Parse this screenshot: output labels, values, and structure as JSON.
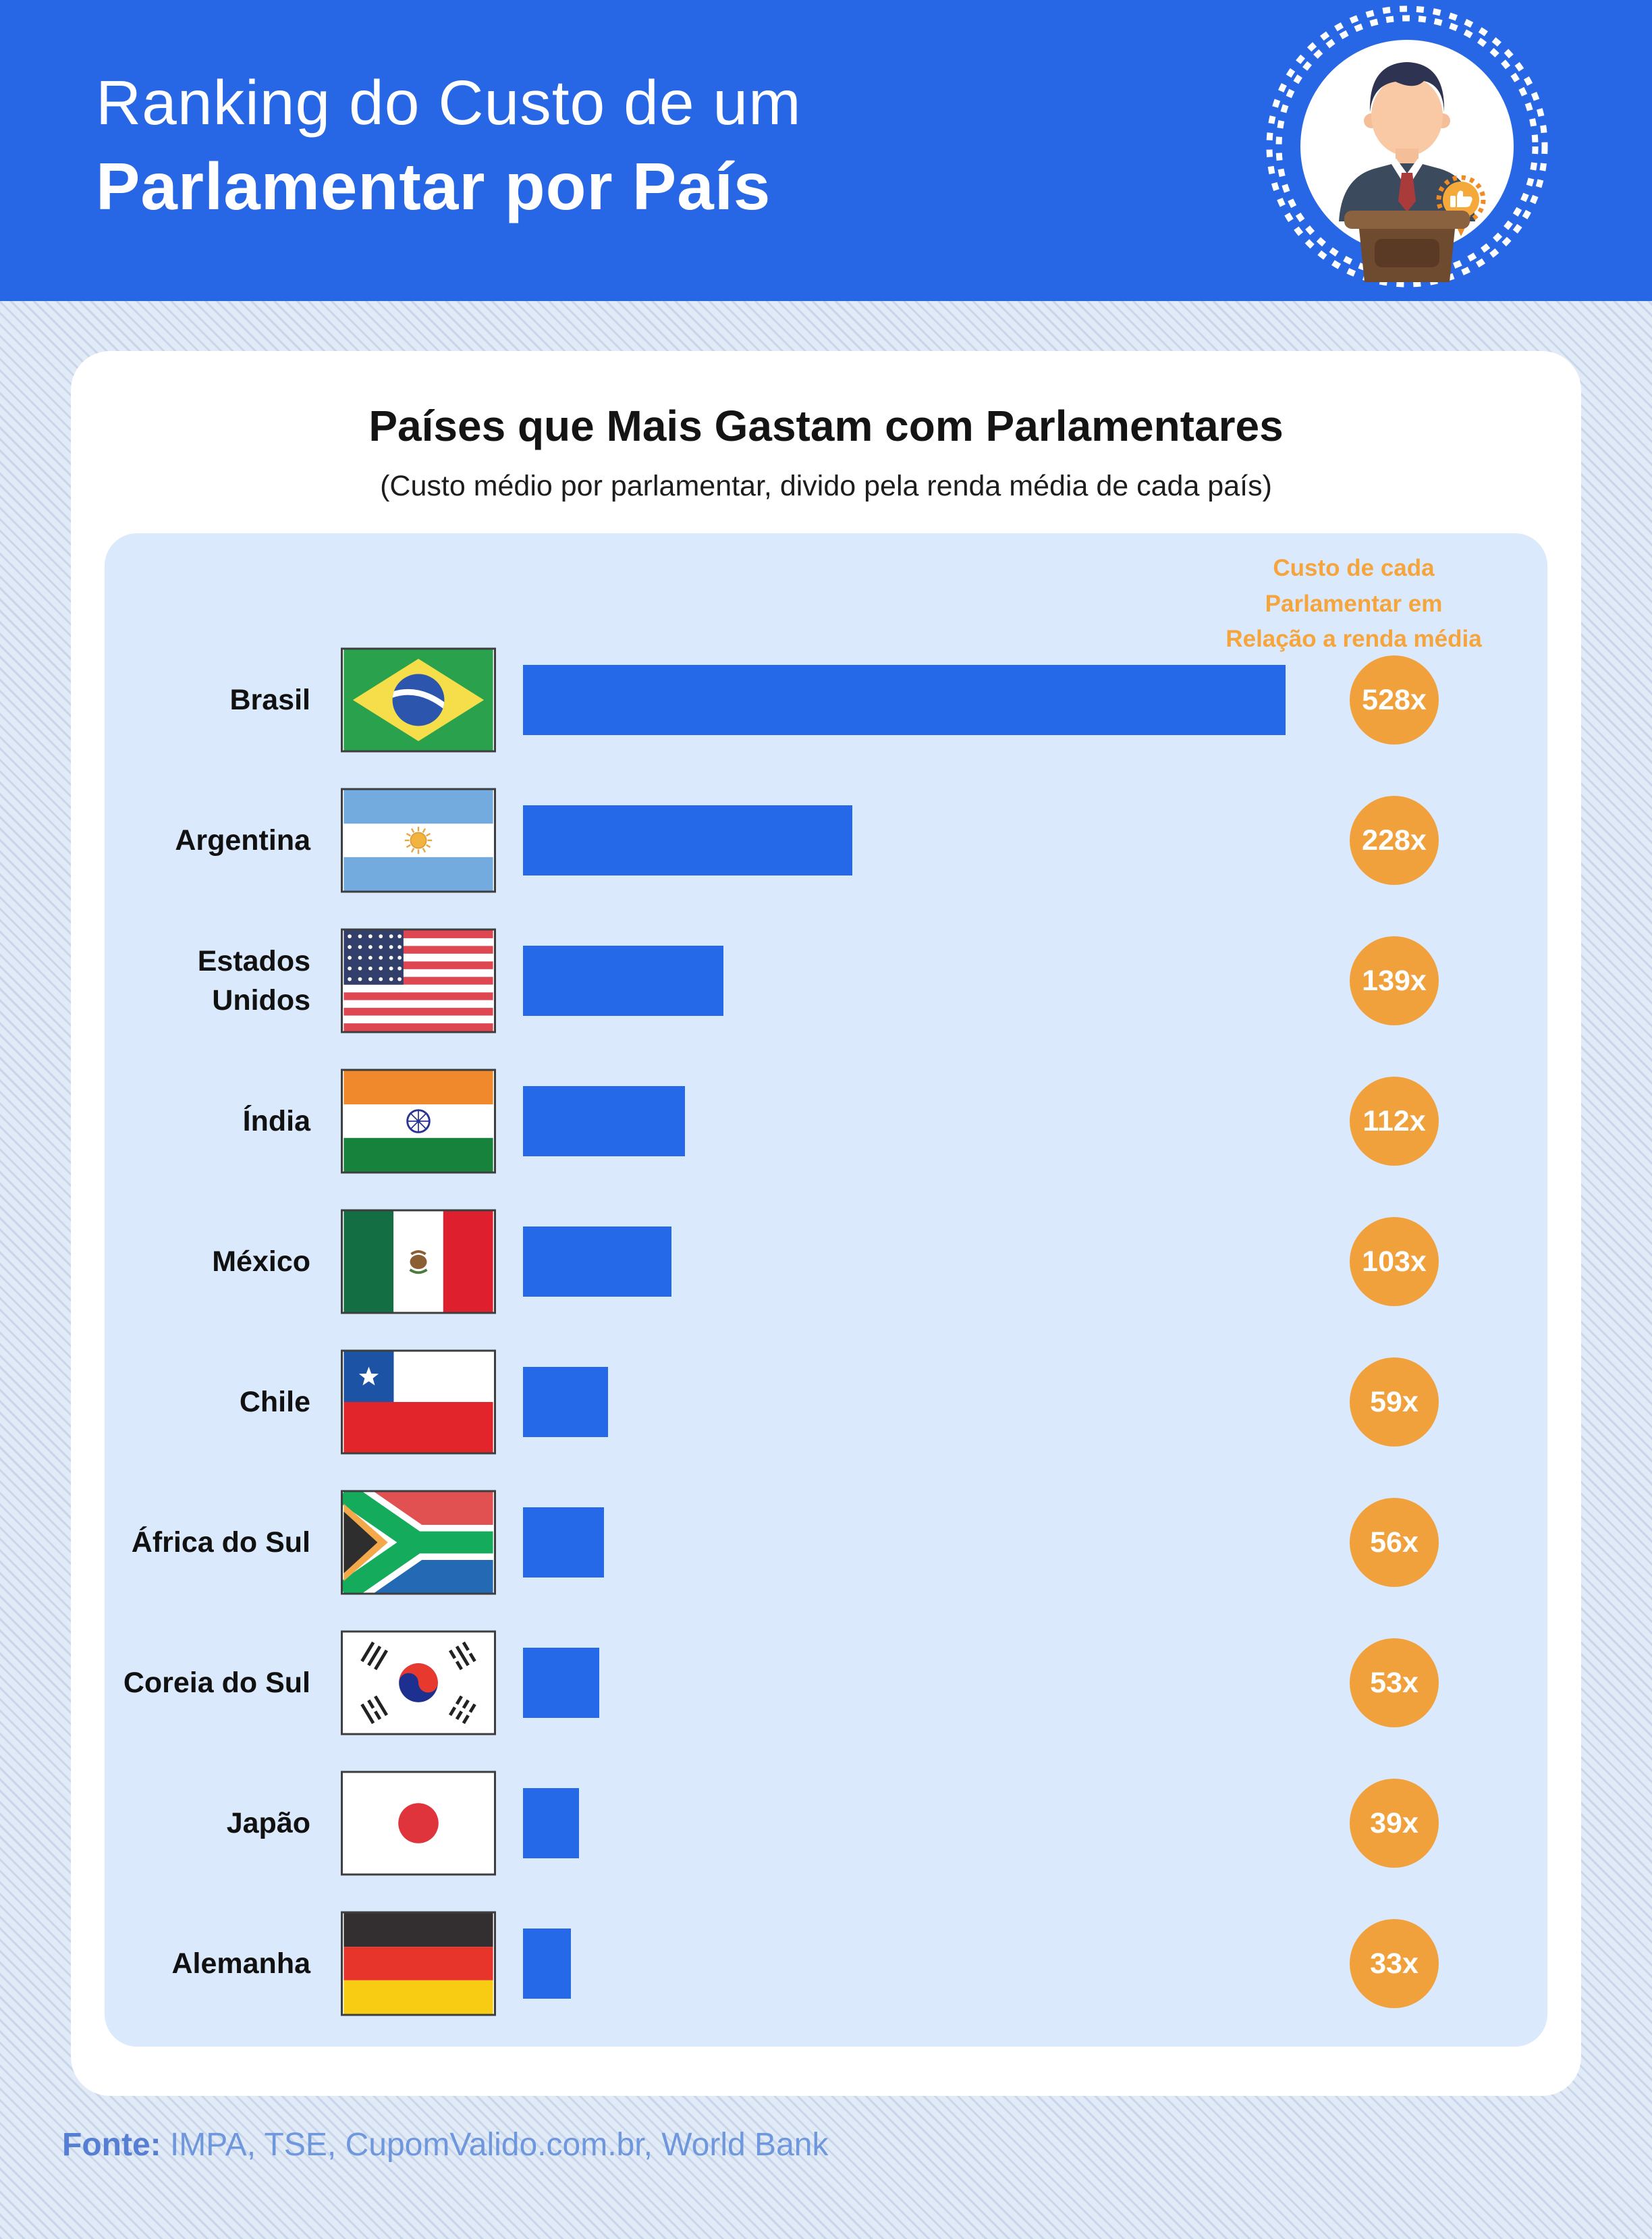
{
  "header": {
    "title_line1": "Ranking do Custo de um",
    "title_line2": "Parlamentar por País"
  },
  "card": {
    "title": "Países que Mais Gastam com Parlamentares",
    "subtitle": "(Custo médio por parlamentar, divido pela renda média de cada país)",
    "note_line1": "Custo de cada",
    "note_line2": "Parlamentar em",
    "note_line3": "Relação a renda média"
  },
  "chart_data": {
    "type": "bar",
    "orientation": "horizontal",
    "title": "Países que Mais Gastam com Parlamentares",
    "subtitle": "(Custo médio por parlamentar, divido pela renda média de cada país)",
    "annotation": "Custo de cada Parlamentar em Relação a renda média",
    "unit_suffix": "x",
    "max_value": 528,
    "grid": false,
    "categories": [
      "Brasil",
      "Argentina",
      "Estados Unidos",
      "Índia",
      "México",
      "Chile",
      "África do Sul",
      "Coreia do Sul",
      "Japão",
      "Alemanha"
    ],
    "values": [
      528,
      228,
      139,
      112,
      103,
      59,
      56,
      53,
      39,
      33
    ],
    "value_labels": [
      "528x",
      "228x",
      "139x",
      "112x",
      "103x",
      "59x",
      "56x",
      "53x",
      "39x",
      "33x"
    ],
    "rows": [
      {
        "country": "Brasil",
        "flag": "brazil-flag-icon",
        "value": 528,
        "value_label": "528x"
      },
      {
        "country": "Argentina",
        "flag": "argentina-flag-icon",
        "value": 228,
        "value_label": "228x"
      },
      {
        "country": "Estados Unidos",
        "flag": "usa-flag-icon",
        "value": 139,
        "value_label": "139x"
      },
      {
        "country": "Índia",
        "flag": "india-flag-icon",
        "value": 112,
        "value_label": "112x"
      },
      {
        "country": "México",
        "flag": "mexico-flag-icon",
        "value": 103,
        "value_label": "103x"
      },
      {
        "country": "Chile",
        "flag": "chile-flag-icon",
        "value": 59,
        "value_label": "59x"
      },
      {
        "country": "África do Sul",
        "flag": "south-africa-flag-icon",
        "value": 56,
        "value_label": "56x"
      },
      {
        "country": "Coreia do Sul",
        "flag": "south-korea-flag-icon",
        "value": 53,
        "value_label": "53x"
      },
      {
        "country": "Japão",
        "flag": "japan-flag-icon",
        "value": 39,
        "value_label": "39x"
      },
      {
        "country": "Alemanha",
        "flag": "germany-flag-icon",
        "value": 33,
        "value_label": "33x"
      }
    ]
  },
  "footer": {
    "label": "Fonte:",
    "sources": " IMPA, TSE, CupomValido.com.br, World Bank"
  },
  "colors": {
    "header_bg": "#2767e5",
    "bar_blue": "#2568e8",
    "accent_orange": "#f1a13b",
    "note_orange": "#f5a53c",
    "panel_blue": "#dbe9fc",
    "card_white": "#ffffff",
    "page_bg": "#e1eaf7",
    "page_stripe": "#c9d5e9",
    "footer_text": "#6f97de"
  }
}
